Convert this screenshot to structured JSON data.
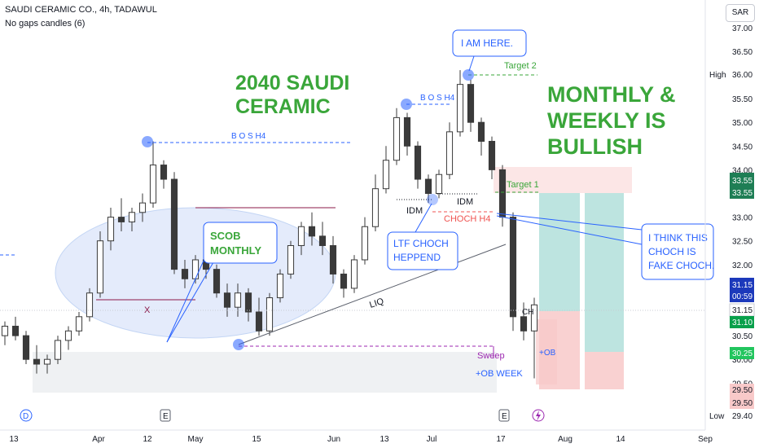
{
  "header": {
    "title": "SAUDI CERAMIC CO., 4h, TADAWUL",
    "subtitle": "No gaps candles (6)",
    "currency": "SAR"
  },
  "chart_data": {
    "type": "candlestick",
    "y_ticks": [
      "37.00",
      "36.50",
      "36.00",
      "35.50",
      "35.00",
      "34.50",
      "34.00",
      "33.50",
      "33.00",
      "32.50",
      "32.00",
      "31.50",
      "31.00",
      "30.50",
      "30.00",
      "29.50"
    ],
    "ylim": [
      29.1,
      37.2
    ],
    "x_ticks": [
      "13",
      "Apr",
      "12",
      "May",
      "15",
      "Jun",
      "13",
      "Jul",
      "17",
      "Aug",
      "14",
      "Sep"
    ],
    "price_labels": {
      "high_label": "High",
      "high": "36.00",
      "low_label": "Low",
      "low": "29.40",
      "target_top": "33.55",
      "target_top2": "33.55",
      "last": "31.15",
      "countdown": "00:59",
      "last2": "31.15",
      "bid": "31.10",
      "stop": "30.25",
      "sl1": "29.50",
      "sl2": "29.50"
    },
    "series": [
      {
        "values": [
          [
            30.5,
            30.8,
            30.3,
            30.7
          ],
          [
            30.7,
            30.9,
            30.4,
            30.5
          ],
          [
            30.5,
            30.6,
            29.9,
            30.0
          ],
          [
            30.0,
            30.3,
            29.7,
            29.9
          ],
          [
            29.9,
            30.1,
            29.7,
            30.0
          ],
          [
            30.0,
            30.5,
            29.9,
            30.4
          ],
          [
            30.4,
            30.7,
            30.2,
            30.6
          ],
          [
            30.6,
            31.0,
            30.5,
            30.9
          ],
          [
            30.9,
            31.5,
            30.8,
            31.4
          ],
          [
            31.4,
            32.7,
            31.3,
            32.5
          ],
          [
            32.5,
            33.2,
            32.3,
            33.0
          ],
          [
            33.0,
            33.4,
            32.7,
            32.9
          ],
          [
            32.9,
            33.2,
            32.7,
            33.1
          ],
          [
            33.1,
            33.5,
            32.9,
            33.3
          ],
          [
            33.3,
            34.6,
            33.2,
            34.1
          ],
          [
            34.1,
            34.2,
            33.6,
            33.8
          ],
          [
            33.8,
            33.95,
            31.8,
            31.9
          ],
          [
            31.9,
            32.1,
            31.5,
            31.7
          ],
          [
            31.7,
            32.2,
            31.6,
            32.1
          ],
          [
            32.1,
            32.3,
            31.7,
            31.9
          ],
          [
            31.9,
            32.0,
            31.3,
            31.4
          ],
          [
            31.4,
            31.6,
            30.9,
            31.1
          ],
          [
            31.1,
            31.6,
            30.9,
            31.4
          ],
          [
            31.4,
            31.5,
            30.8,
            31.0
          ],
          [
            31.0,
            31.3,
            30.5,
            30.6
          ],
          [
            30.6,
            31.4,
            30.5,
            31.3
          ],
          [
            31.3,
            31.9,
            31.2,
            31.8
          ],
          [
            31.8,
            32.5,
            31.7,
            32.4
          ],
          [
            32.4,
            32.9,
            32.2,
            32.8
          ],
          [
            32.8,
            33.1,
            32.4,
            32.6
          ],
          [
            32.6,
            32.9,
            32.2,
            32.4
          ],
          [
            32.4,
            32.6,
            31.6,
            31.8
          ],
          [
            31.8,
            31.9,
            31.3,
            31.5
          ],
          [
            31.5,
            32.2,
            31.4,
            32.1
          ],
          [
            32.1,
            33.0,
            32.0,
            32.8
          ],
          [
            32.8,
            33.9,
            32.7,
            33.6
          ],
          [
            33.6,
            34.5,
            33.5,
            34.2
          ],
          [
            34.2,
            35.3,
            34.1,
            35.1
          ],
          [
            35.1,
            35.2,
            34.3,
            34.5
          ],
          [
            34.5,
            34.6,
            33.6,
            33.8
          ],
          [
            33.8,
            33.9,
            33.3,
            33.5
          ],
          [
            33.5,
            34.0,
            33.4,
            33.9
          ],
          [
            33.9,
            35.0,
            33.8,
            34.8
          ],
          [
            34.8,
            36.1,
            34.7,
            35.8
          ],
          [
            35.8,
            35.9,
            34.8,
            35.0
          ],
          [
            35.0,
            35.1,
            34.3,
            34.6
          ],
          [
            34.6,
            34.7,
            33.8,
            34.0
          ],
          [
            34.0,
            34.1,
            32.8,
            33.0
          ],
          [
            33.0,
            33.1,
            30.6,
            30.9
          ],
          [
            30.9,
            31.2,
            30.4,
            30.6
          ],
          [
            30.6,
            31.3,
            29.6,
            31.15
          ]
        ]
      }
    ]
  },
  "annotations": {
    "big_title": [
      "2040 SAUDI",
      "CERAMIC"
    ],
    "bullish": [
      "MONTHLY &",
      "WEEKLY IS",
      "BULLISH"
    ],
    "i_am_here": "I AM HERE.",
    "target2": "Target 2",
    "target1": "Target 1",
    "bos_top": "B O S H4",
    "bos_left": "B O S H4",
    "idm1": "IDM",
    "idm2": "IDM",
    "choch": "CHOCH H4",
    "ltf_choch": [
      "LTF CHOCH",
      "HEPPEND"
    ],
    "fake_choch": [
      "I THINK THIS",
      "CHOCH IS",
      "FAKE CHOCH."
    ],
    "scob": [
      "SCOB",
      "MONTHLY"
    ],
    "x_mark": "X",
    "liq": "LIQ",
    "sweep": "Sweep",
    "ob": "+OB",
    "ob_week": "+OB WEEK",
    "ch": "CH",
    "letters": {
      "d": "D",
      "e1": "E",
      "e2": "E"
    }
  },
  "colors": {
    "up": "#26a69a",
    "down": "#ef5350",
    "candle": "#3a3a3a",
    "blue": "#2962ff",
    "purple": "#9c27b0",
    "green": "#3aa63a"
  }
}
